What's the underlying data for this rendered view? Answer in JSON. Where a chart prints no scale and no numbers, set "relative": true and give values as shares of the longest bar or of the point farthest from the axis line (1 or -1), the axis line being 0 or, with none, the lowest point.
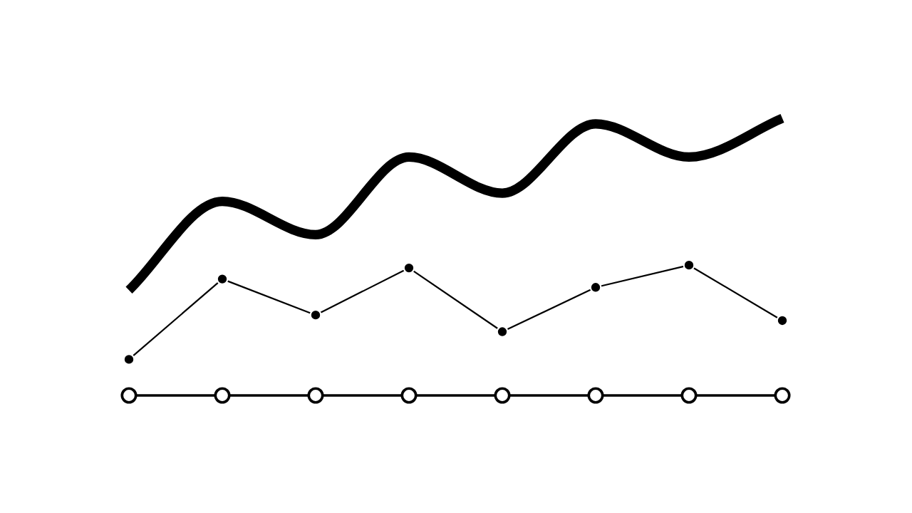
{
  "chart_data": {
    "type": "line",
    "relative": true,
    "grid": false,
    "marker": "circle",
    "line_style": "solid",
    "categories": [
      null,
      null,
      null,
      null,
      null,
      null,
      null,
      null
    ],
    "series": [
      {
        "color": "#000000",
        "marker": "none",
        "values": [
          0.38,
          0.7,
          0.58,
          0.86,
          0.73,
          0.98,
          0.86,
          1.0
        ]
      },
      {
        "color": "#000000",
        "values": [
          0.13,
          0.42,
          0.29,
          0.46,
          0.23,
          0.39,
          0.47,
          0.27
        ]
      }
    ]
  }
}
